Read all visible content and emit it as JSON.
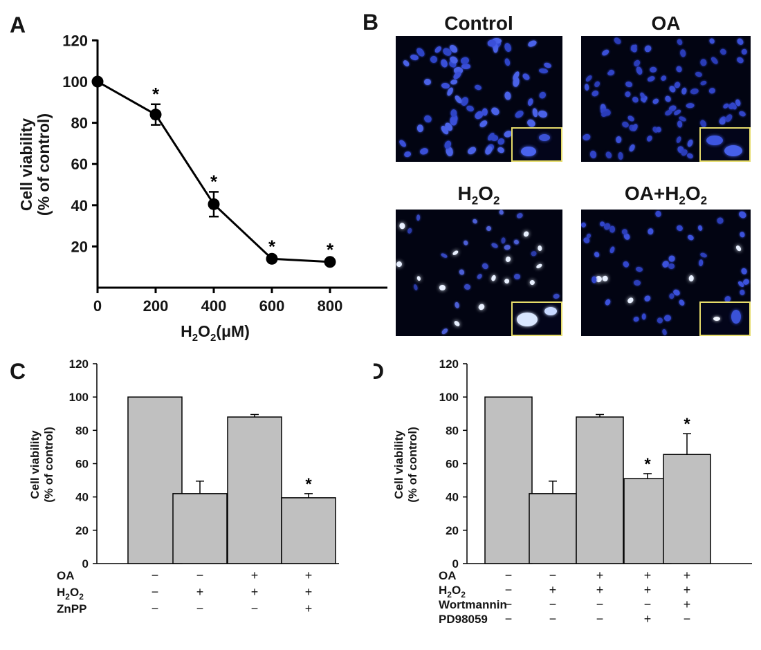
{
  "panels": {
    "A": {
      "letter": "A",
      "chart_data": {
        "type": "line",
        "x": [
          0,
          200,
          400,
          600,
          800
        ],
        "values": [
          100,
          84,
          40.5,
          14,
          12.5
        ],
        "errors": [
          0,
          5,
          6,
          1,
          1
        ],
        "significant": [
          false,
          true,
          true,
          true,
          true
        ],
        "ylabel_line1": "Cell viability",
        "ylabel_line2": "(% of control)",
        "xlabel_main": "H",
        "xlabel_sub1": "2",
        "xlabel_mid": "O",
        "xlabel_sub2": "2",
        "xlabel_tail": "(μM)",
        "xlim": [
          0,
          1000
        ],
        "ylim": [
          0,
          120
        ],
        "xticks": [
          0,
          200,
          400,
          600,
          800
        ],
        "yticks": [
          20,
          40,
          60,
          80,
          100,
          120
        ],
        "star": "*"
      }
    },
    "B": {
      "letter": "B",
      "images": [
        {
          "title": "Control"
        },
        {
          "title": "OA"
        },
        {
          "title_main": "H",
          "sub1": "2",
          "mid": "O",
          "sub2": "2"
        },
        {
          "title_main": "OA+H",
          "sub1": "2",
          "mid": "O",
          "sub2": "2"
        }
      ]
    },
    "C": {
      "letter": "C",
      "chart_data": {
        "type": "bar",
        "values": [
          100,
          42,
          88,
          39.5
        ],
        "errors": [
          0,
          7.5,
          1.5,
          2.5
        ],
        "significant": [
          false,
          false,
          false,
          true
        ],
        "ylim": [
          0,
          120
        ],
        "yticks": [
          0,
          20,
          40,
          60,
          80,
          100,
          120
        ],
        "ylabel_line1": "Cell viability",
        "ylabel_line2": "(% of control)",
        "star": "*",
        "conditions": [
          {
            "label": "OA",
            "signs": [
              "−",
              "−",
              "+",
              "+"
            ]
          },
          {
            "label": "H",
            "sub1": "2",
            "mid": "O",
            "sub2": "2",
            "signs": [
              "−",
              "+",
              "+",
              "+"
            ]
          },
          {
            "label": "ZnPP",
            "signs": [
              "−",
              "−",
              "−",
              "+"
            ]
          }
        ]
      }
    },
    "D": {
      "letter": "D",
      "chart_data": {
        "type": "bar",
        "values": [
          100,
          42,
          88,
          51,
          65.5
        ],
        "errors": [
          0,
          7.5,
          1.5,
          3,
          12.5
        ],
        "significant": [
          false,
          false,
          false,
          true,
          true
        ],
        "ylim": [
          0,
          120
        ],
        "yticks": [
          0,
          20,
          40,
          60,
          80,
          100,
          120
        ],
        "ylabel_line1": "Cell viability",
        "ylabel_line2": "(% of control)",
        "star": "*",
        "conditions": [
          {
            "label": "OA",
            "signs": [
              "−",
              "−",
              "+",
              "+",
              "+"
            ]
          },
          {
            "label": "H",
            "sub1": "2",
            "mid": "O",
            "sub2": "2",
            "signs": [
              "−",
              "+",
              "+",
              "+",
              "+"
            ]
          },
          {
            "label": "Wortmannin",
            "signs": [
              "−",
              "−",
              "−",
              "−",
              "+"
            ]
          },
          {
            "label": "PD98059",
            "signs": [
              "−",
              "−",
              "−",
              "+",
              "−"
            ]
          }
        ]
      }
    }
  }
}
